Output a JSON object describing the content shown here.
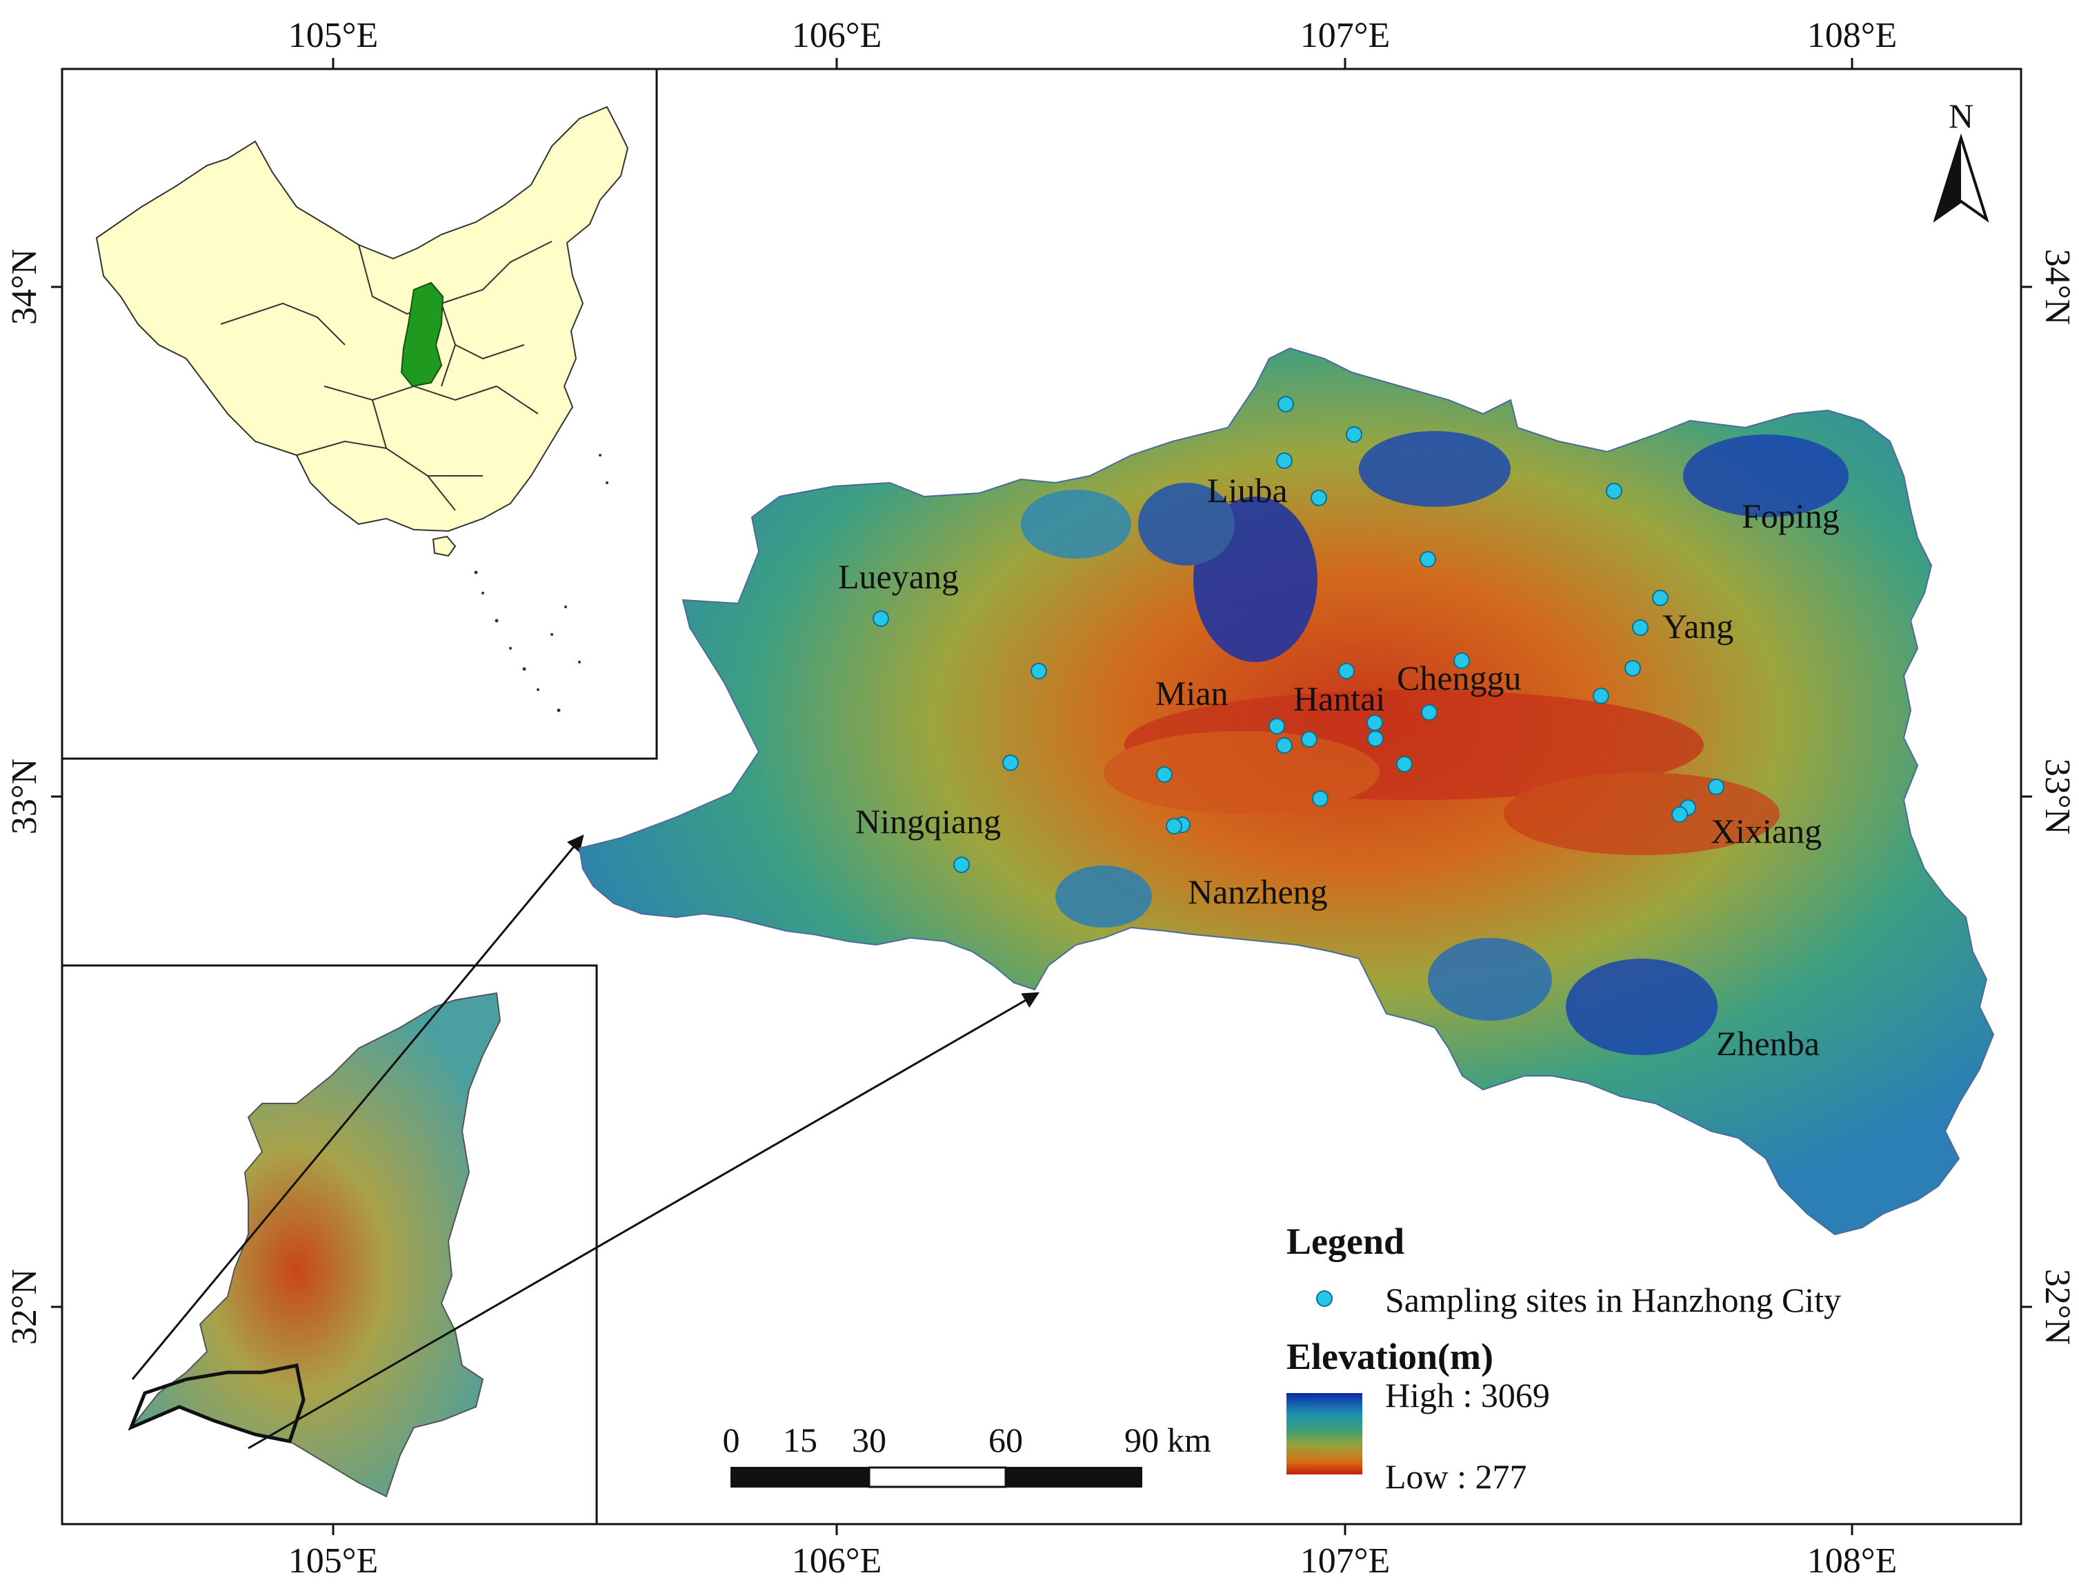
{
  "graticule": {
    "lon_labels": [
      "105°E",
      "106°E",
      "107°E",
      "108°E"
    ],
    "lat_labels": [
      "34°N",
      "33°N",
      "32°N"
    ]
  },
  "north_arrow": {
    "label": "N"
  },
  "places": [
    {
      "name": "Liuba"
    },
    {
      "name": "Foping"
    },
    {
      "name": "Lueyang"
    },
    {
      "name": "Yang"
    },
    {
      "name": "Chenggu"
    },
    {
      "name": "Hantai"
    },
    {
      "name": "Mian"
    },
    {
      "name": "Ningqiang"
    },
    {
      "name": "Xixiang"
    },
    {
      "name": "Nanzheng"
    },
    {
      "name": "Zhenba"
    }
  ],
  "sampling_sites_count": 30,
  "legend": {
    "title": "Legend",
    "sites_label": "Sampling sites in Hanzhong City",
    "elevation_title": "Elevation(m)",
    "high_label": "High : 3069",
    "low_label": "Low : 277",
    "site_color": "#26c6e8",
    "ramp_colors": [
      "#0b2aa5",
      "#1f8fb0",
      "#3aa07a",
      "#9aa23a",
      "#d96a14",
      "#c21d0d"
    ]
  },
  "scale_bar": {
    "ticks": [
      "0",
      "15",
      "30",
      "60",
      "90"
    ],
    "unit": "km"
  },
  "inset_china": {
    "highlight_color": "#1f9a1f",
    "fill_color": "#fffdc8"
  },
  "colors": {
    "high": "#0b2aa5",
    "mid": "#3aa07a",
    "low": "#c21d0d",
    "frame": "#111111"
  }
}
